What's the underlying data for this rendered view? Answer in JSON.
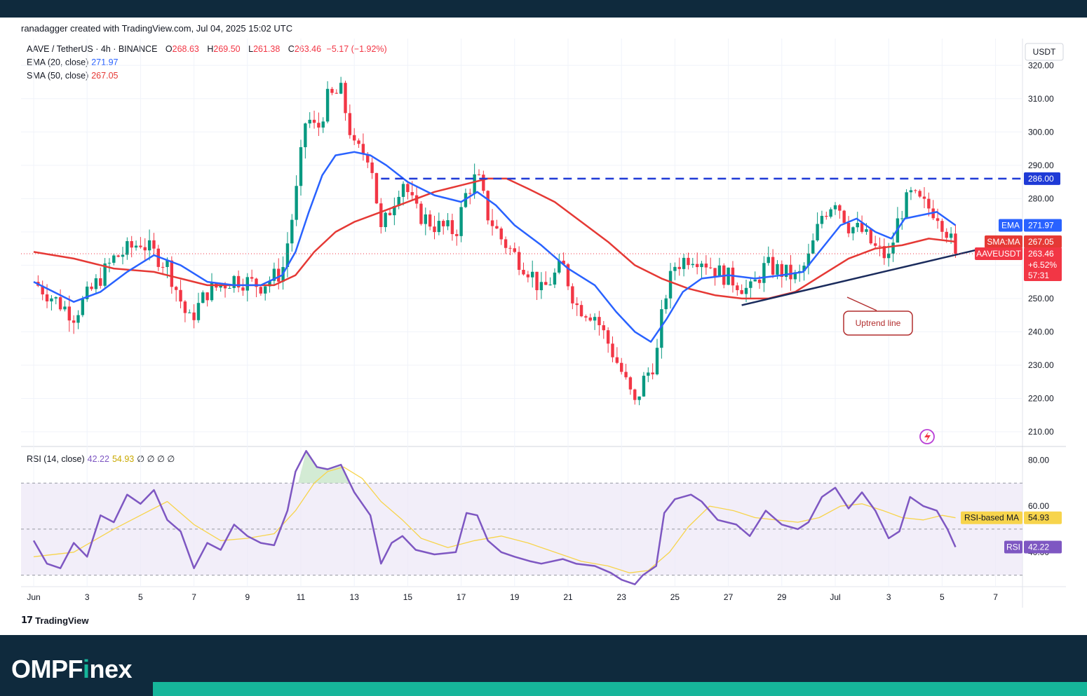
{
  "header": {
    "credit": "ranadagger created with TradingView.com, Jul 04, 2025 15:02 UTC"
  },
  "legend": {
    "symbol": "AAVE / TetherUS · 4h · BINANCE",
    "o_label": "O",
    "o_value": "268.63",
    "h_label": "H",
    "h_value": "269.50",
    "l_label": "L",
    "l_value": "261.38",
    "c_label": "C",
    "c_value": "263.46",
    "change": "−5.17 (−1.92%)",
    "ema_label": "EMA (20, close)",
    "ema_value": "271.97",
    "sma_label": "SMA (50, close)",
    "sma_value": "267.05",
    "rsi_label": "RSI (14, close)",
    "rsi_value": "42.22",
    "rsi_ma_value": "54.93",
    "rsi_extra": "∅ ∅ ∅ ∅"
  },
  "colors": {
    "up": "#089981",
    "down": "#f23645",
    "ema": "#2962ff",
    "sma": "#e53935",
    "rsi": "#7e57c2",
    "rsi_ma": "#f7d44c",
    "trend": "#1a2b5c",
    "resistance": "#1e3ad6"
  },
  "chart_data": [
    {
      "type": "candlestick",
      "title": "AAVE / TetherUS · 4h · BINANCE",
      "currency": "USDT",
      "ylim": [
        206,
        327
      ],
      "yticks": [
        320,
        310,
        300,
        290,
        280,
        270,
        260,
        250,
        240,
        230,
        220,
        210
      ],
      "ytick_labels": [
        "320.00",
        "310.00",
        "300.00",
        "290.00",
        "280.00",
        "",
        "",
        "250.00",
        "240.00",
        "230.00",
        "220.00",
        "210.00"
      ],
      "x_labels": [
        "Jun",
        "3",
        "5",
        "7",
        "9",
        "11",
        "13",
        "15",
        "17",
        "19",
        "21",
        "23",
        "25",
        "27",
        "29",
        "Jul",
        "3",
        "5",
        "7"
      ],
      "close_path": [
        [
          0,
          255
        ],
        [
          1.5,
          245
        ],
        [
          3,
          262
        ],
        [
          4,
          267
        ],
        [
          5,
          260
        ],
        [
          5.8,
          243
        ],
        [
          6.5,
          252
        ],
        [
          7.5,
          256
        ],
        [
          8.5,
          254
        ],
        [
          9.3,
          258
        ],
        [
          9.8,
          280
        ],
        [
          10.2,
          305
        ],
        [
          10.6,
          300
        ],
        [
          11,
          310
        ],
        [
          11.5,
          312
        ],
        [
          12,
          295
        ],
        [
          12.6,
          293
        ],
        [
          13,
          270
        ],
        [
          13.4,
          278
        ],
        [
          13.8,
          286
        ],
        [
          14.3,
          276
        ],
        [
          15,
          272
        ],
        [
          15.8,
          270
        ],
        [
          16.2,
          282
        ],
        [
          16.6,
          287
        ],
        [
          17,
          275
        ],
        [
          17.5,
          268
        ],
        [
          18,
          263
        ],
        [
          18.6,
          258
        ],
        [
          19,
          252
        ],
        [
          19.8,
          260
        ],
        [
          20.3,
          248
        ],
        [
          21,
          245
        ],
        [
          21.6,
          235
        ],
        [
          22,
          228
        ],
        [
          22.5,
          218
        ],
        [
          22.8,
          225
        ],
        [
          23.3,
          232
        ],
        [
          23.6,
          250
        ],
        [
          24,
          260
        ],
        [
          24.6,
          263
        ],
        [
          25,
          262
        ],
        [
          25.6,
          258
        ],
        [
          26.3,
          255
        ],
        [
          26.8,
          252
        ],
        [
          27.4,
          260
        ],
        [
          28,
          258
        ],
        [
          28.6,
          256
        ],
        [
          29,
          262
        ],
        [
          29.5,
          275
        ],
        [
          30,
          280
        ],
        [
          30.5,
          272
        ],
        [
          31,
          270
        ],
        [
          31.5,
          265
        ],
        [
          32,
          262
        ],
        [
          32.4,
          275
        ],
        [
          32.8,
          281
        ],
        [
          33.3,
          278
        ],
        [
          33.8,
          276
        ],
        [
          34.2,
          270
        ],
        [
          34.5,
          263.46
        ]
      ],
      "ema_20": [
        [
          0,
          255
        ],
        [
          1.5,
          249
        ],
        [
          2.5,
          252
        ],
        [
          3.5,
          258
        ],
        [
          4.5,
          263
        ],
        [
          5.5,
          260
        ],
        [
          6.5,
          255
        ],
        [
          7.5,
          254
        ],
        [
          8.5,
          254
        ],
        [
          9.3,
          257
        ],
        [
          9.8,
          264
        ],
        [
          10.3,
          276
        ],
        [
          10.8,
          287
        ],
        [
          11.3,
          293
        ],
        [
          12,
          294
        ],
        [
          12.6,
          293
        ],
        [
          13.2,
          290
        ],
        [
          14,
          285
        ],
        [
          15,
          281
        ],
        [
          16,
          279
        ],
        [
          16.6,
          282
        ],
        [
          17.3,
          278
        ],
        [
          18,
          272
        ],
        [
          19,
          266
        ],
        [
          20,
          259
        ],
        [
          21,
          254
        ],
        [
          21.8,
          246
        ],
        [
          22.5,
          240
        ],
        [
          23.1,
          237
        ],
        [
          23.7,
          244
        ],
        [
          24.3,
          252
        ],
        [
          25,
          256
        ],
        [
          26,
          257
        ],
        [
          27,
          256
        ],
        [
          28,
          257
        ],
        [
          28.8,
          258
        ],
        [
          29.5,
          265
        ],
        [
          30.2,
          272
        ],
        [
          30.8,
          274
        ],
        [
          31.5,
          270
        ],
        [
          32.1,
          268
        ],
        [
          32.6,
          274
        ],
        [
          33.2,
          275
        ],
        [
          33.8,
          276
        ],
        [
          34.5,
          272
        ]
      ],
      "sma_50": [
        [
          0,
          264
        ],
        [
          1.5,
          262
        ],
        [
          3,
          259
        ],
        [
          4.5,
          258
        ],
        [
          5.5,
          256
        ],
        [
          6.5,
          254
        ],
        [
          8,
          254
        ],
        [
          9,
          254
        ],
        [
          9.8,
          257
        ],
        [
          10.5,
          264
        ],
        [
          11.3,
          270
        ],
        [
          12,
          273
        ],
        [
          13,
          276
        ],
        [
          14,
          279
        ],
        [
          15,
          282
        ],
        [
          16,
          284
        ],
        [
          17,
          286
        ],
        [
          17.7,
          286
        ],
        [
          18.5,
          283
        ],
        [
          19.5,
          279
        ],
        [
          20.5,
          273
        ],
        [
          21.5,
          267
        ],
        [
          22.5,
          260
        ],
        [
          23.5,
          256
        ],
        [
          24.5,
          253
        ],
        [
          25.5,
          251
        ],
        [
          26.5,
          250
        ],
        [
          27.5,
          250
        ],
        [
          28.5,
          252
        ],
        [
          29.5,
          257
        ],
        [
          30.5,
          262
        ],
        [
          31.5,
          265
        ],
        [
          32.5,
          266
        ],
        [
          33.5,
          268
        ],
        [
          34.5,
          267.05
        ]
      ],
      "resistance": {
        "price": 286,
        "label": "286.00",
        "x_start": 13,
        "x_end": 38
      },
      "uptrend_line": {
        "from": [
          26.5,
          248
        ],
        "to": [
          35.5,
          265
        ],
        "label": "Uptrend line"
      },
      "price_labels": [
        {
          "name": "EMA",
          "value": "271.97",
          "price": 271.97
        },
        {
          "name": "SMA:MA",
          "value": "267.05",
          "price": 267.05
        },
        {
          "name": "AAVEUSDT",
          "value": "263.46",
          "price": 263.46,
          "extra1": "+6.52%",
          "extra2": "57:31"
        }
      ]
    },
    {
      "type": "line",
      "title": "RSI (14, close)",
      "ylim": [
        25,
        85
      ],
      "yticks": [
        80,
        60,
        40
      ],
      "ytick_labels": [
        "80.00",
        "60.00",
        "40.00"
      ],
      "bands": {
        "upper": 70,
        "middle": 50,
        "lower": 30
      },
      "rsi": [
        [
          0,
          45
        ],
        [
          0.5,
          35
        ],
        [
          1,
          33
        ],
        [
          1.5,
          44
        ],
        [
          2,
          38
        ],
        [
          2.5,
          56
        ],
        [
          3,
          53
        ],
        [
          3.5,
          65
        ],
        [
          4,
          61
        ],
        [
          4.5,
          67
        ],
        [
          5,
          54
        ],
        [
          5.5,
          49
        ],
        [
          6,
          33
        ],
        [
          6.5,
          44
        ],
        [
          7,
          41
        ],
        [
          7.5,
          52
        ],
        [
          8,
          47
        ],
        [
          8.5,
          44
        ],
        [
          9,
          43
        ],
        [
          9.5,
          58
        ],
        [
          9.8,
          75
        ],
        [
          10.2,
          84
        ],
        [
          10.6,
          77
        ],
        [
          11,
          76
        ],
        [
          11.5,
          78
        ],
        [
          12,
          66
        ],
        [
          12.6,
          56
        ],
        [
          13,
          35
        ],
        [
          13.4,
          44
        ],
        [
          13.8,
          47
        ],
        [
          14.3,
          41
        ],
        [
          15,
          39
        ],
        [
          15.8,
          40
        ],
        [
          16.2,
          57
        ],
        [
          16.6,
          56
        ],
        [
          17,
          45
        ],
        [
          17.5,
          40
        ],
        [
          18,
          38
        ],
        [
          18.6,
          36
        ],
        [
          19,
          35
        ],
        [
          19.8,
          37
        ],
        [
          20.3,
          35
        ],
        [
          21,
          34
        ],
        [
          21.6,
          31
        ],
        [
          22,
          28
        ],
        [
          22.5,
          26
        ],
        [
          22.8,
          30
        ],
        [
          23.3,
          34
        ],
        [
          23.6,
          57
        ],
        [
          24,
          63
        ],
        [
          24.6,
          65
        ],
        [
          25,
          62
        ],
        [
          25.6,
          54
        ],
        [
          26.3,
          52
        ],
        [
          26.8,
          47
        ],
        [
          27.4,
          58
        ],
        [
          28,
          52
        ],
        [
          28.6,
          50
        ],
        [
          29,
          53
        ],
        [
          29.5,
          64
        ],
        [
          30,
          68
        ],
        [
          30.5,
          59
        ],
        [
          31,
          66
        ],
        [
          31.5,
          58
        ],
        [
          32,
          46
        ],
        [
          32.4,
          49
        ],
        [
          32.8,
          64
        ],
        [
          33.3,
          60
        ],
        [
          33.8,
          58
        ],
        [
          34.2,
          50
        ],
        [
          34.5,
          42.22
        ]
      ],
      "rsi_ma": [
        [
          0,
          38
        ],
        [
          1.5,
          40
        ],
        [
          3,
          50
        ],
        [
          4,
          56
        ],
        [
          5,
          62
        ],
        [
          6,
          52
        ],
        [
          7,
          45
        ],
        [
          8,
          46
        ],
        [
          9,
          48
        ],
        [
          9.8,
          58
        ],
        [
          10.5,
          70
        ],
        [
          11,
          75
        ],
        [
          11.6,
          77
        ],
        [
          12.3,
          72
        ],
        [
          13,
          62
        ],
        [
          13.8,
          54
        ],
        [
          14.5,
          46
        ],
        [
          15.5,
          42
        ],
        [
          16.5,
          45
        ],
        [
          17.5,
          47
        ],
        [
          18.5,
          44
        ],
        [
          19.5,
          40
        ],
        [
          20.5,
          36
        ],
        [
          21.5,
          34
        ],
        [
          22.3,
          31
        ],
        [
          23,
          32
        ],
        [
          23.8,
          40
        ],
        [
          24.5,
          51
        ],
        [
          25.3,
          60
        ],
        [
          26.2,
          58
        ],
        [
          27,
          55
        ],
        [
          27.8,
          54
        ],
        [
          28.6,
          53
        ],
        [
          29.4,
          55
        ],
        [
          30.2,
          60
        ],
        [
          31,
          61
        ],
        [
          31.8,
          58
        ],
        [
          32.5,
          55
        ],
        [
          33.3,
          54
        ],
        [
          34,
          56
        ],
        [
          34.5,
          54.93
        ]
      ],
      "price_labels": [
        {
          "name": "RSI-based MA",
          "value": "54.93",
          "price": 54.93
        },
        {
          "name": "RSI",
          "value": "42.22",
          "price": 42.22
        }
      ]
    }
  ],
  "footer": {
    "tradingview": "TradingView",
    "brand_pre": "OMPF",
    "brand_dot": "i",
    "brand_post": "nex"
  }
}
